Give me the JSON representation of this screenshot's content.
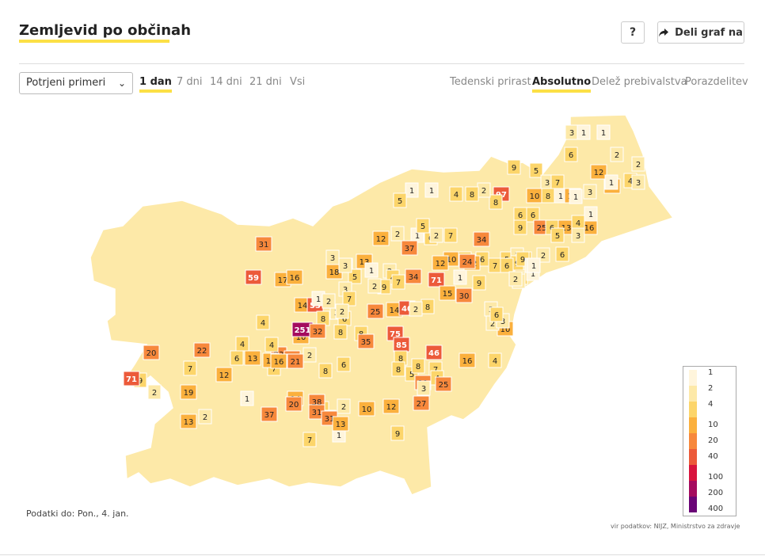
{
  "header": {
    "title": "Zemljevid po občinah",
    "help_label": "?",
    "share_label": "Deli graf na"
  },
  "controls": {
    "dataset_select": "Potrjeni primeri",
    "time_tabs": [
      {
        "label": "1 dan",
        "active": true
      },
      {
        "label": "7 dni",
        "active": false
      },
      {
        "label": "14 dni",
        "active": false
      },
      {
        "label": "21 dni",
        "active": false
      },
      {
        "label": "Vsi",
        "active": false
      }
    ],
    "mode_tabs": [
      {
        "label": "Tedenski prirast",
        "active": false
      },
      {
        "label": "Absolutno",
        "active": true
      },
      {
        "label": "Delež prebivalstva",
        "active": false
      },
      {
        "label": "Porazdelitev",
        "active": false
      }
    ]
  },
  "map": {
    "municipality_values": [
      3,
      1,
      1,
      2,
      2,
      6,
      12,
      10,
      4,
      3,
      1,
      9,
      5,
      3,
      7,
      10,
      8,
      1,
      10,
      3,
      1,
      97,
      6,
      6,
      9,
      25,
      6,
      13,
      16,
      4,
      1,
      3,
      5,
      8,
      2,
      8,
      4,
      1,
      1,
      5,
      2,
      6,
      1,
      5,
      2,
      7,
      10,
      4,
      6,
      5,
      34,
      3,
      6,
      9,
      2,
      1,
      12,
      9,
      1,
      24,
      7,
      6,
      9,
      2,
      1,
      2,
      6,
      31,
      37,
      12,
      71,
      15,
      30,
      9,
      2,
      1,
      3,
      10,
      2,
      3,
      6,
      12,
      13,
      1,
      2,
      4,
      18,
      3,
      5,
      9,
      2,
      7,
      34,
      3,
      59,
      17,
      16,
      14,
      53,
      8,
      3,
      6,
      25,
      14,
      8,
      40,
      2,
      3,
      1,
      2,
      3,
      7,
      2,
      10,
      23,
      20,
      7,
      4,
      4,
      251,
      32,
      8,
      8,
      35,
      75,
      85,
      8,
      46,
      16,
      4,
      20,
      22,
      4,
      12,
      6,
      13,
      16,
      16,
      21,
      2,
      8,
      6,
      8,
      5,
      7,
      29,
      3,
      4,
      25,
      8,
      7,
      9,
      71,
      19,
      2,
      1,
      37,
      14,
      5,
      2,
      10,
      38,
      6,
      7,
      1,
      9,
      12,
      27,
      13,
      2,
      20,
      31,
      31,
      13
    ]
  },
  "legend": {
    "stops": [
      "1",
      "2",
      "4",
      "10",
      "20",
      "40",
      "100",
      "200",
      "400"
    ],
    "colors": [
      "#fff5dc",
      "#fde9a8",
      "#fcd56a",
      "#fbb03d",
      "#f7883c",
      "#ec5a3a",
      "#d8143d",
      "#a40b5e",
      "#6a0476"
    ]
  },
  "footer": {
    "date_text": "Podatki do: Pon., 4. jan.",
    "source_text": "vir podatkov: NIJZ, Ministrstvo za zdravje"
  }
}
